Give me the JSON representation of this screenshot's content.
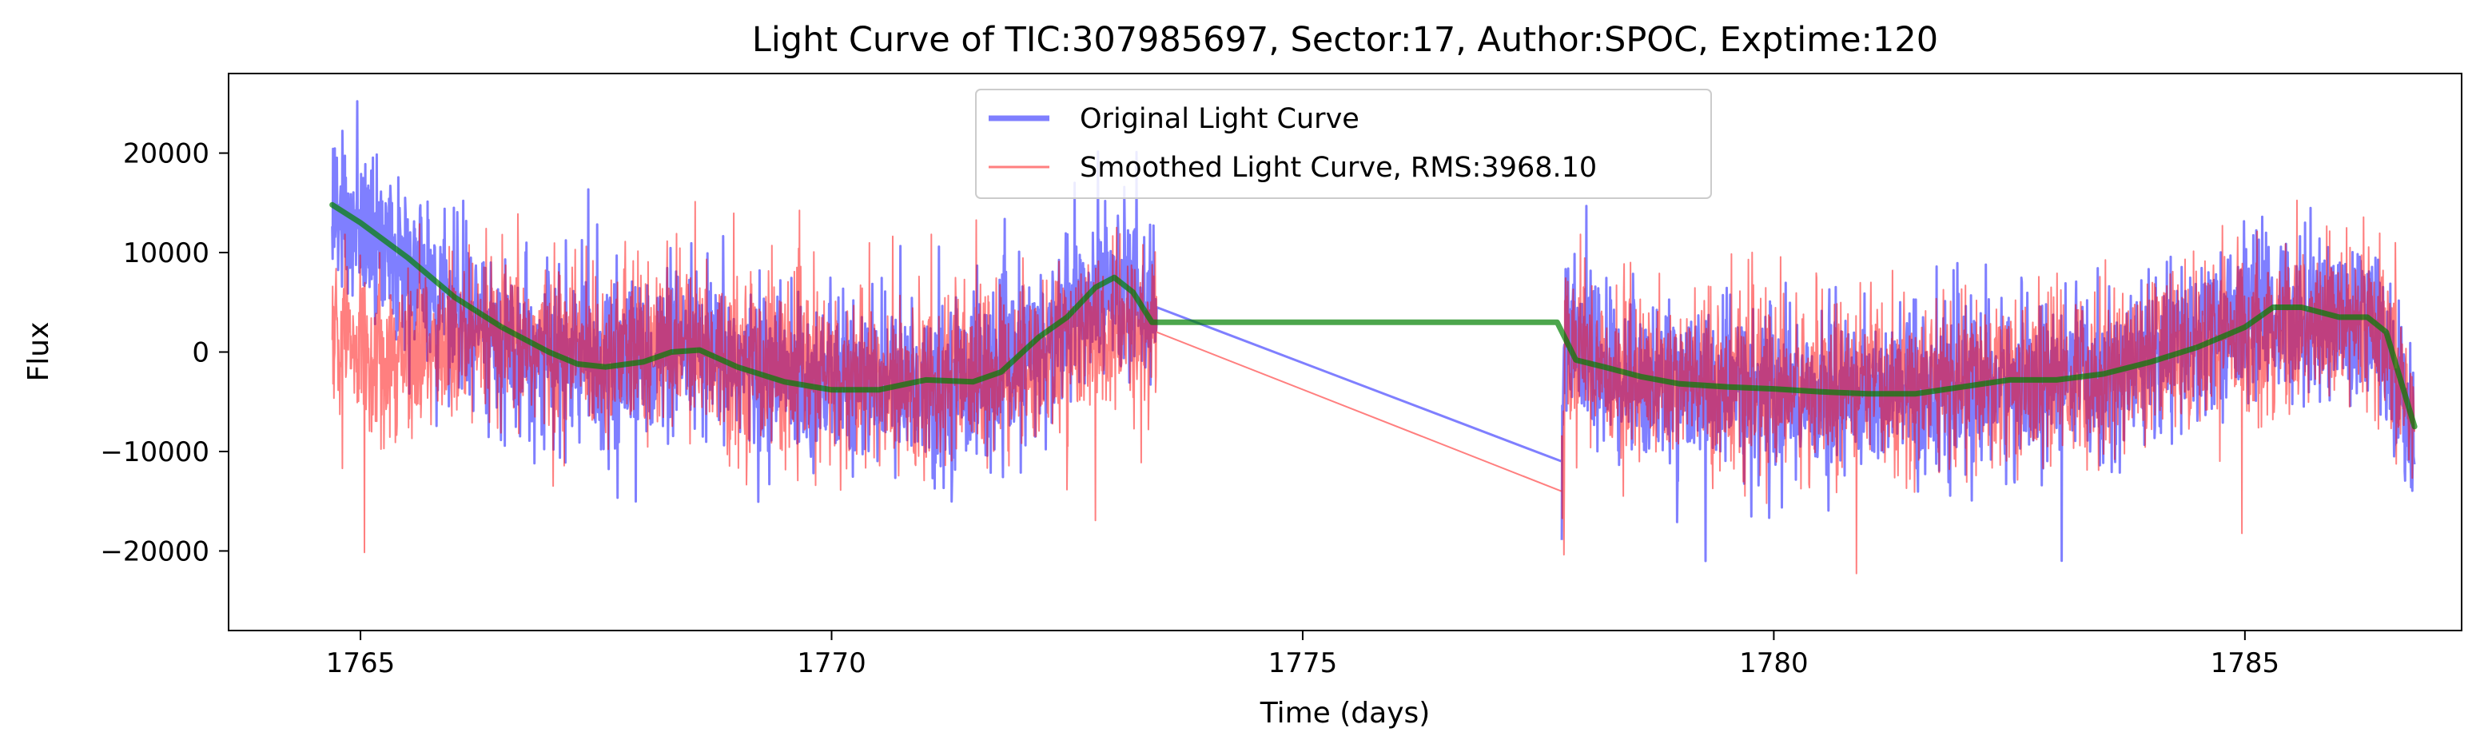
{
  "chart_data": {
    "type": "line",
    "title": "Light Curve of TIC:307985697, Sector:17, Author:SPOC, Exptime:120",
    "xlabel": "Time (days)",
    "ylabel": "Flux",
    "xlim": [
      1763.6,
      1787.3
    ],
    "ylim": [
      -28000,
      28000
    ],
    "xticks": [
      1765,
      1770,
      1775,
      1780,
      1785
    ],
    "yticks": [
      -20000,
      -10000,
      0,
      10000,
      20000
    ],
    "x_tick_labels": [
      "1765",
      "1770",
      "1775",
      "1780",
      "1785"
    ],
    "y_tick_labels": [
      "−20000",
      "−10000",
      "0",
      "10000",
      "20000"
    ],
    "grid": false,
    "legend_position": "top-center",
    "series": [
      {
        "name": "Original Light Curve",
        "color": "#0000ff",
        "alpha": 0.5,
        "style": "dense noisy line",
        "trend_x": [
          1764.7,
          1765.0,
          1765.5,
          1766.0,
          1766.5,
          1767.0,
          1767.5,
          1768.0,
          1768.5,
          1769.0,
          1769.5,
          1770.0,
          1770.5,
          1771.0,
          1771.5,
          1772.0,
          1772.5,
          1772.9,
          1773.2,
          1773.45,
          1777.75,
          1777.8,
          1778.3,
          1779.0,
          1780.0,
          1781.0,
          1782.0,
          1783.0,
          1783.5,
          1784.0,
          1784.5,
          1785.0,
          1785.5,
          1786.0,
          1786.4,
          1786.8
        ],
        "trend_y": [
          14000,
          12500,
          9000,
          4500,
          1500,
          -200,
          -800,
          -700,
          -200,
          -1200,
          -2500,
          -3000,
          -3500,
          -3200,
          -2800,
          -1500,
          3000,
          7000,
          6500,
          4500,
          -11000,
          1000,
          -2000,
          -3500,
          -4200,
          -4200,
          -3800,
          -3200,
          -2500,
          -500,
          1500,
          3500,
          4000,
          3500,
          2000,
          -8000
        ],
        "noise_sd": 4000
      },
      {
        "name": "Smoothed Light Curve, RMS:3968.10",
        "color": "#ff0000",
        "alpha": 0.5,
        "style": "dense noisy line",
        "trend_x": [
          1764.7,
          1765.0,
          1765.5,
          1766.0,
          1766.5,
          1767.0,
          1767.5,
          1768.0,
          1768.5,
          1769.0,
          1769.5,
          1770.0,
          1770.5,
          1771.0,
          1771.5,
          1772.0,
          1772.5,
          1772.9,
          1773.2,
          1773.45,
          1777.75,
          1777.8,
          1778.3,
          1779.0,
          1780.0,
          1781.0,
          1782.0,
          1783.0,
          1783.5,
          1784.0,
          1784.5,
          1785.0,
          1785.5,
          1786.0,
          1786.4,
          1786.8
        ],
        "trend_y": [
          1000,
          0,
          0,
          500,
          800,
          500,
          0,
          200,
          500,
          -500,
          -1500,
          -2500,
          -3000,
          -2800,
          -2500,
          -1500,
          500,
          1500,
          2000,
          2000,
          -14000,
          1000,
          -2000,
          -3000,
          -3500,
          -3500,
          -3000,
          -2500,
          -2000,
          -500,
          800,
          2000,
          2500,
          2500,
          1500,
          -6000
        ],
        "noise_sd": 4200
      },
      {
        "name": "",
        "color": "#008000",
        "alpha": 0.7,
        "style": "smooth trend",
        "x": [
          1764.7,
          1765.0,
          1765.5,
          1766.0,
          1766.5,
          1767.0,
          1767.3,
          1767.6,
          1768.0,
          1768.3,
          1768.6,
          1769.0,
          1769.5,
          1770.0,
          1770.5,
          1771.0,
          1771.5,
          1771.8,
          1772.2,
          1772.5,
          1772.8,
          1773.0,
          1773.2,
          1773.4,
          1777.7,
          1777.9,
          1778.2,
          1778.6,
          1779.0,
          1779.5,
          1780.0,
          1780.5,
          1781.0,
          1781.5,
          1782.0,
          1782.5,
          1783.0,
          1783.5,
          1784.0,
          1784.5,
          1785.0,
          1785.3,
          1785.6,
          1786.0,
          1786.3,
          1786.5,
          1786.8
        ],
        "y": [
          14800,
          13000,
          9500,
          5500,
          2500,
          0,
          -1200,
          -1500,
          -1000,
          0,
          200,
          -1500,
          -3000,
          -3800,
          -3800,
          -2800,
          -3000,
          -2000,
          1500,
          3500,
          6500,
          7500,
          6000,
          3000,
          3000,
          -800,
          -1500,
          -2500,
          -3200,
          -3500,
          -3700,
          -4000,
          -4200,
          -4200,
          -3500,
          -2800,
          -2800,
          -2200,
          -1000,
          500,
          2500,
          4500,
          4500,
          3500,
          3500,
          2000,
          -7500
        ]
      }
    ]
  }
}
